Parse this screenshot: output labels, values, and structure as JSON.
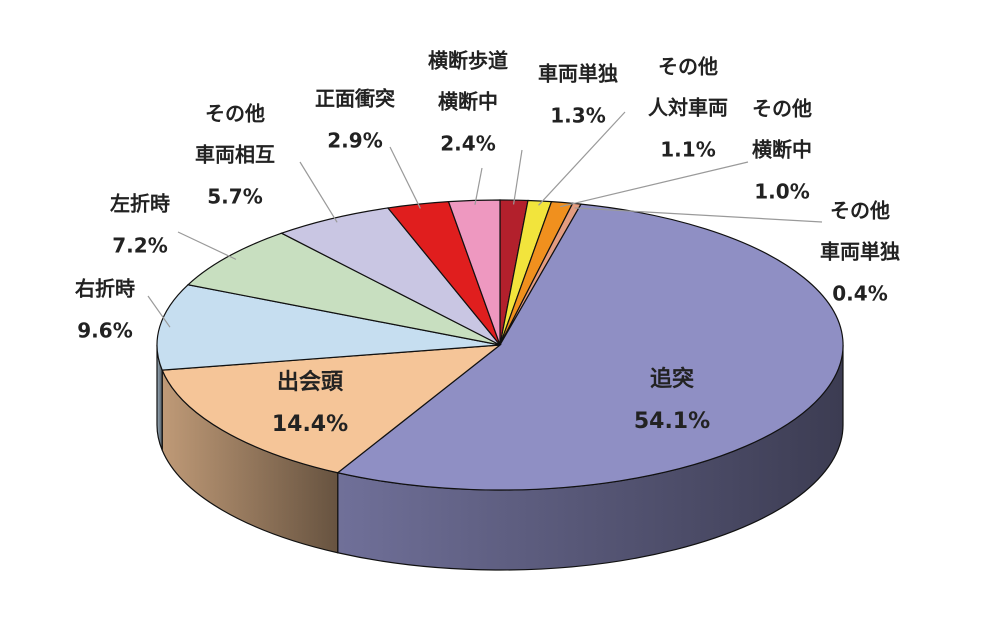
{
  "chart_data": {
    "type": "pie3d",
    "categories": [
      [
        "車両単独"
      ],
      [
        "その他",
        "人対車両"
      ],
      [
        "その他",
        "横断中"
      ],
      [
        "その他",
        "車両単独"
      ],
      [
        "追突"
      ],
      [
        "出会頭"
      ],
      [
        "右折時"
      ],
      [
        "左折時"
      ],
      [
        "その他",
        "車両相互"
      ],
      [
        "正面衝突"
      ],
      [
        "横断歩道",
        "横断中"
      ]
    ],
    "values": [
      1.3,
      1.1,
      1.0,
      0.4,
      54.1,
      14.4,
      9.6,
      7.2,
      5.7,
      2.9,
      2.4
    ],
    "value_labels": [
      "1.3%",
      "1.1%",
      "1.0%",
      "0.4%",
      "54.1%",
      "14.4%",
      "9.6%",
      "7.2%",
      "5.7%",
      "2.9%",
      "2.4%"
    ],
    "colors": [
      "#b3202c",
      "#f2e43c",
      "#f0901e",
      "#e39c80",
      "#8f8fc4",
      "#f5c598",
      "#c6def0",
      "#c8dfc0",
      "#c9c6e3",
      "#e01e1e",
      "#ee98c0"
    ]
  }
}
